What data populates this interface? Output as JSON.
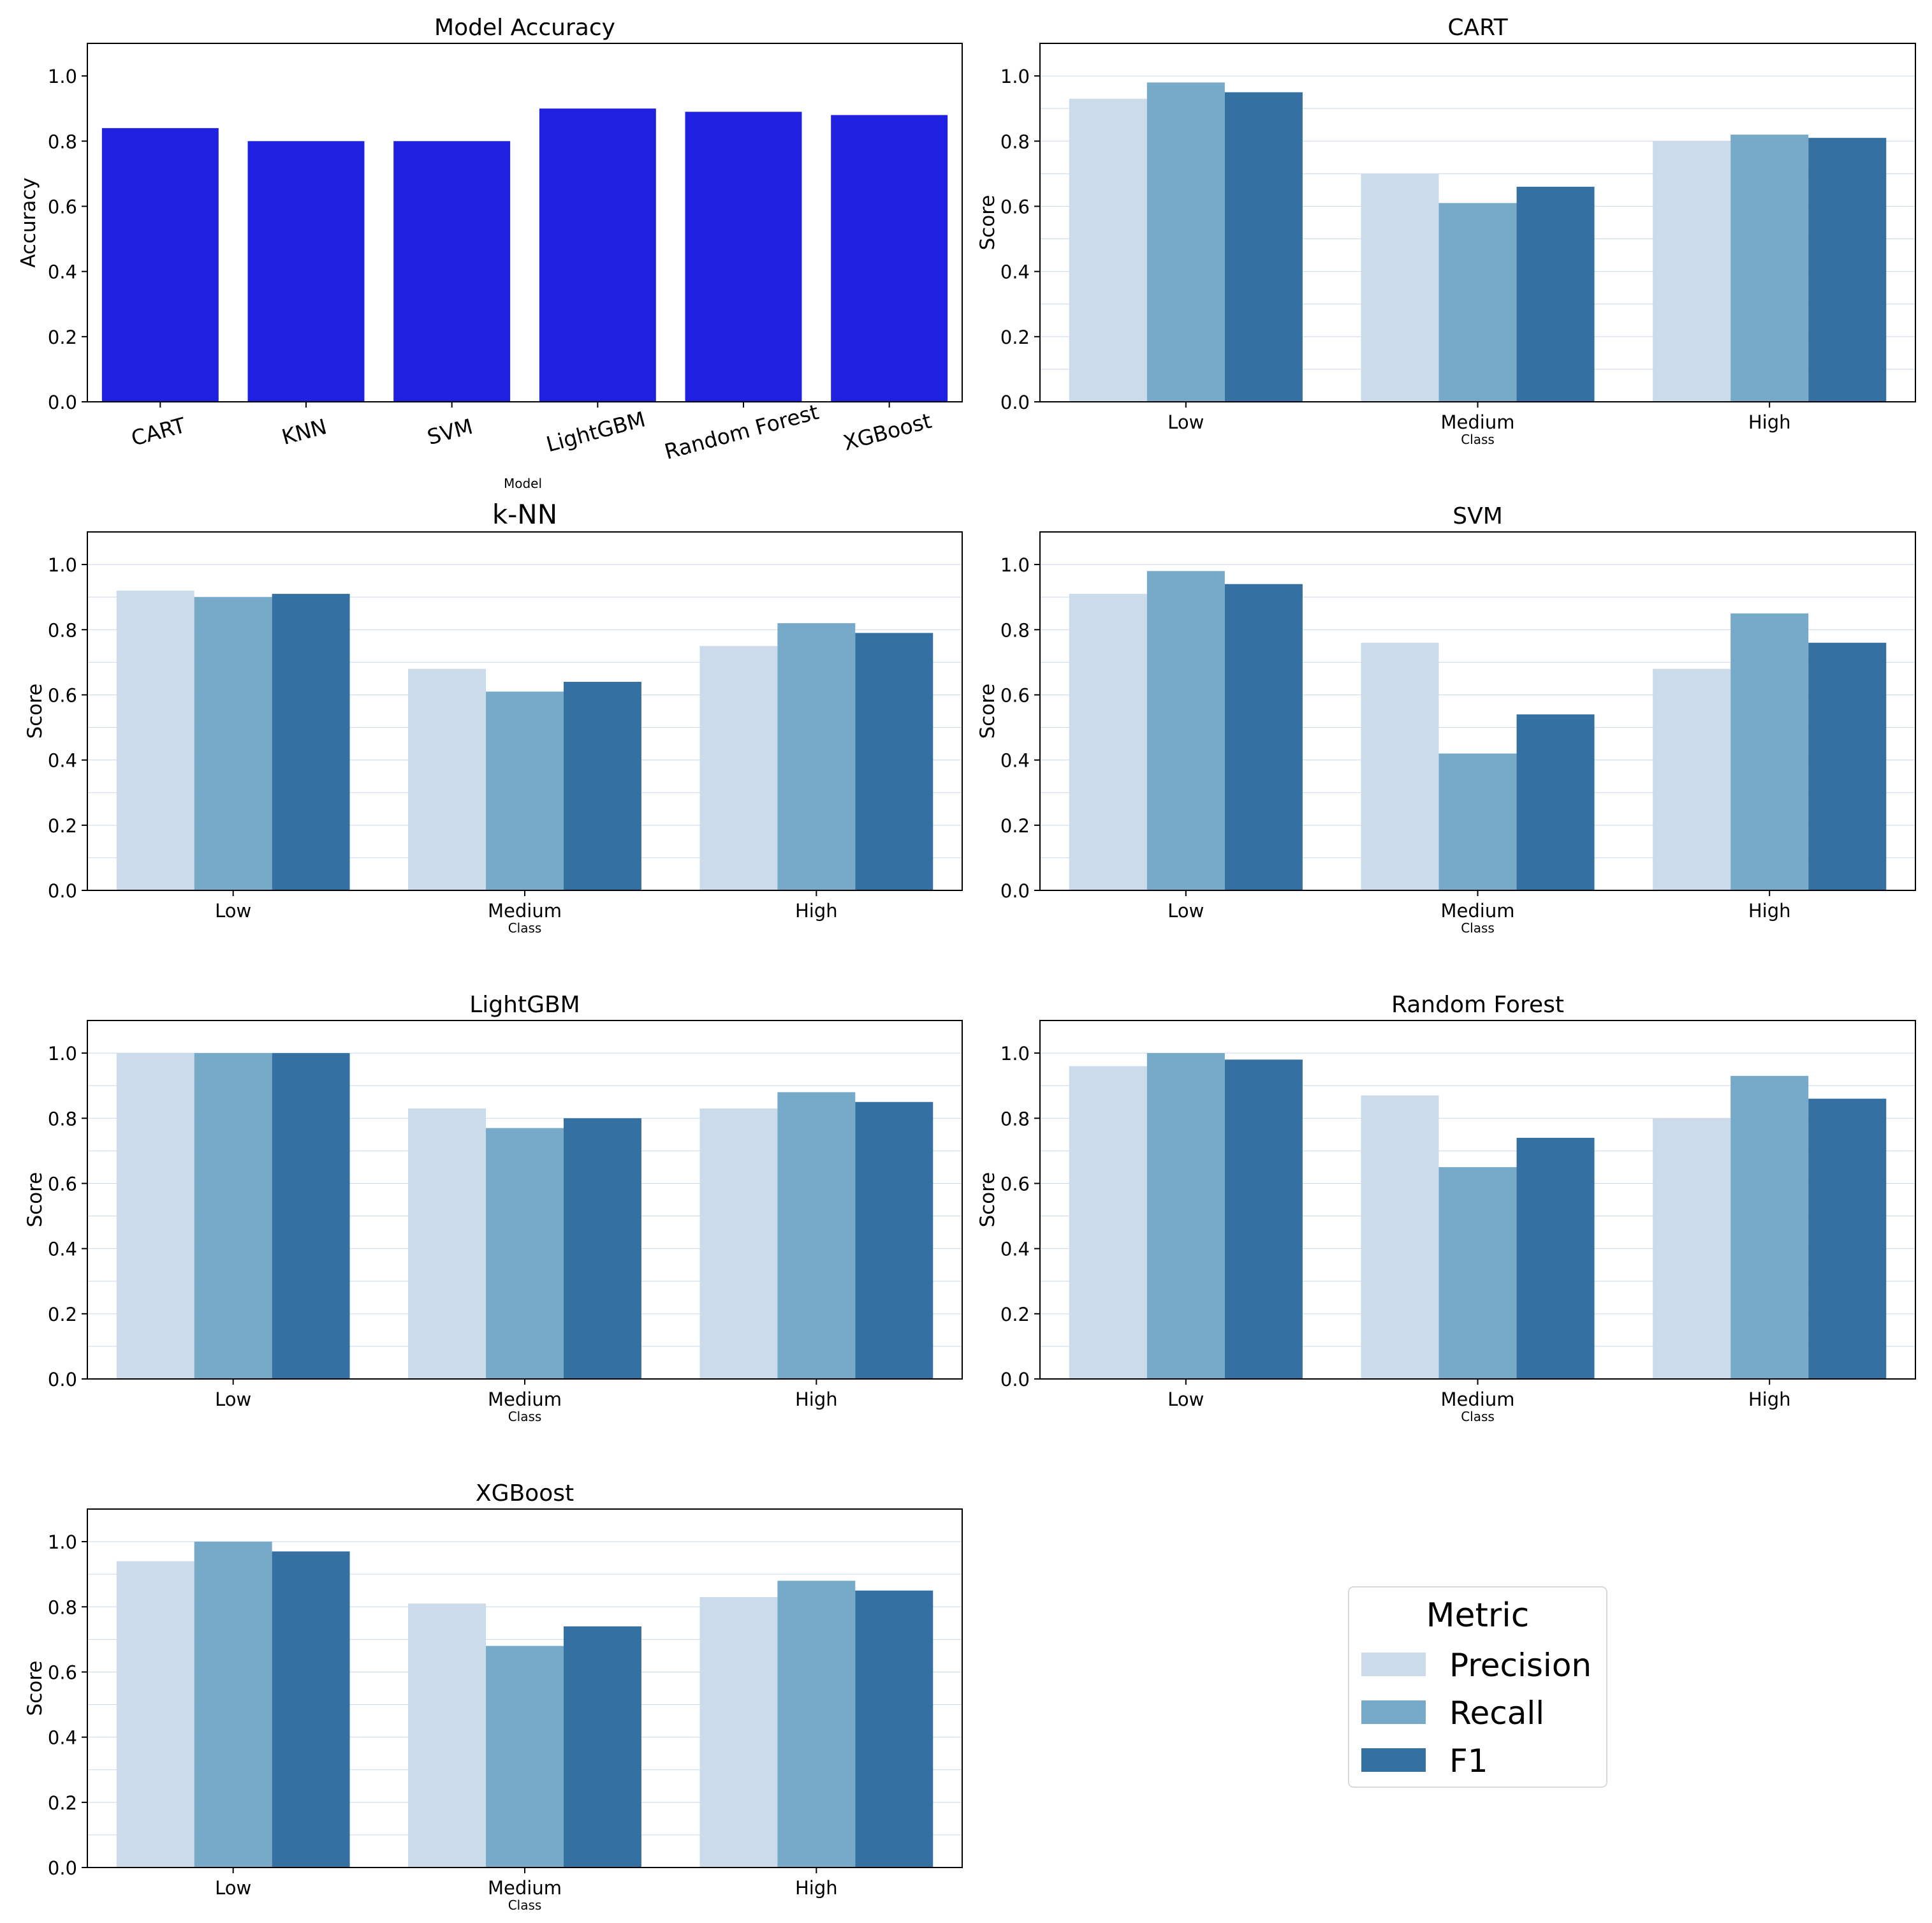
{
  "colors": {
    "accuracy_bar": "#2020e0",
    "precision": "#cbdbea",
    "recall": "#77a9c8",
    "f1": "#3470a2",
    "axis": "#000000",
    "grid": "#c9d8ee"
  },
  "chart_data": [
    {
      "id": "accuracy",
      "type": "bar",
      "title": "Model Accuracy",
      "xlabel": "Model",
      "ylabel": "Accuracy",
      "categories": [
        "CART",
        "KNN",
        "SVM",
        "LightGBM",
        "Random Forest",
        "XGBoost"
      ],
      "values": [
        0.84,
        0.8,
        0.8,
        0.9,
        0.89,
        0.88
      ],
      "ylim": [
        0,
        1.1
      ],
      "yticks": [
        "0.0",
        "0.2",
        "0.4",
        "0.6",
        "0.8",
        "1.0"
      ],
      "grid": false
    },
    {
      "id": "cart",
      "type": "bar",
      "title": "CART",
      "xlabel": "Class",
      "ylabel": "Score",
      "categories": [
        "Low",
        "Medium",
        "High"
      ],
      "series": [
        {
          "name": "Precision",
          "values": [
            0.93,
            0.7,
            0.8
          ]
        },
        {
          "name": "Recall",
          "values": [
            0.98,
            0.61,
            0.82
          ]
        },
        {
          "name": "F1",
          "values": [
            0.95,
            0.66,
            0.81
          ]
        }
      ],
      "ylim": [
        0,
        1.1
      ],
      "yticks": [
        "0.0",
        "0.2",
        "0.4",
        "0.6",
        "0.8",
        "1.0"
      ]
    },
    {
      "id": "knn",
      "type": "bar",
      "title": "k-NN",
      "xlabel": "Class",
      "ylabel": "Score",
      "categories": [
        "Low",
        "Medium",
        "High"
      ],
      "series": [
        {
          "name": "Precision",
          "values": [
            0.92,
            0.68,
            0.75
          ]
        },
        {
          "name": "Recall",
          "values": [
            0.9,
            0.61,
            0.82
          ]
        },
        {
          "name": "F1",
          "values": [
            0.91,
            0.64,
            0.79
          ]
        }
      ],
      "ylim": [
        0,
        1.1
      ],
      "yticks": [
        "0.0",
        "0.2",
        "0.4",
        "0.6",
        "0.8",
        "1.0"
      ]
    },
    {
      "id": "svm",
      "type": "bar",
      "title": "SVM",
      "xlabel": "Class",
      "ylabel": "Score",
      "categories": [
        "Low",
        "Medium",
        "High"
      ],
      "series": [
        {
          "name": "Precision",
          "values": [
            0.91,
            0.76,
            0.68
          ]
        },
        {
          "name": "Recall",
          "values": [
            0.98,
            0.42,
            0.85
          ]
        },
        {
          "name": "F1",
          "values": [
            0.94,
            0.54,
            0.76
          ]
        }
      ],
      "ylim": [
        0,
        1.1
      ],
      "yticks": [
        "0.0",
        "0.2",
        "0.4",
        "0.6",
        "0.8",
        "1.0"
      ]
    },
    {
      "id": "lightgbm",
      "type": "bar",
      "title": "LightGBM",
      "xlabel": "Class",
      "ylabel": "Score",
      "categories": [
        "Low",
        "Medium",
        "High"
      ],
      "series": [
        {
          "name": "Precision",
          "values": [
            1.0,
            0.83,
            0.83
          ]
        },
        {
          "name": "Recall",
          "values": [
            1.0,
            0.77,
            0.88
          ]
        },
        {
          "name": "F1",
          "values": [
            1.0,
            0.8,
            0.85
          ]
        }
      ],
      "ylim": [
        0,
        1.1
      ],
      "yticks": [
        "0.0",
        "0.2",
        "0.4",
        "0.6",
        "0.8",
        "1.0"
      ]
    },
    {
      "id": "random-forest",
      "type": "bar",
      "title": "Random Forest",
      "xlabel": "Class",
      "ylabel": "Score",
      "categories": [
        "Low",
        "Medium",
        "High"
      ],
      "series": [
        {
          "name": "Precision",
          "values": [
            0.96,
            0.87,
            0.8
          ]
        },
        {
          "name": "Recall",
          "values": [
            1.0,
            0.65,
            0.93
          ]
        },
        {
          "name": "F1",
          "values": [
            0.98,
            0.74,
            0.86
          ]
        }
      ],
      "ylim": [
        0,
        1.1
      ],
      "yticks": [
        "0.0",
        "0.2",
        "0.4",
        "0.6",
        "0.8",
        "1.0"
      ]
    },
    {
      "id": "xgboost",
      "type": "bar",
      "title": "XGBoost",
      "xlabel": "Class",
      "ylabel": "Score",
      "categories": [
        "Low",
        "Medium",
        "High"
      ],
      "series": [
        {
          "name": "Precision",
          "values": [
            0.94,
            0.81,
            0.83
          ]
        },
        {
          "name": "Recall",
          "values": [
            1.0,
            0.68,
            0.88
          ]
        },
        {
          "name": "F1",
          "values": [
            0.97,
            0.74,
            0.85
          ]
        }
      ],
      "ylim": [
        0,
        1.1
      ],
      "yticks": [
        "0.0",
        "0.2",
        "0.4",
        "0.6",
        "0.8",
        "1.0"
      ]
    }
  ],
  "legend": {
    "title": "Metric",
    "entries": [
      "Precision",
      "Recall",
      "F1"
    ],
    "placement": "bottom-right"
  }
}
